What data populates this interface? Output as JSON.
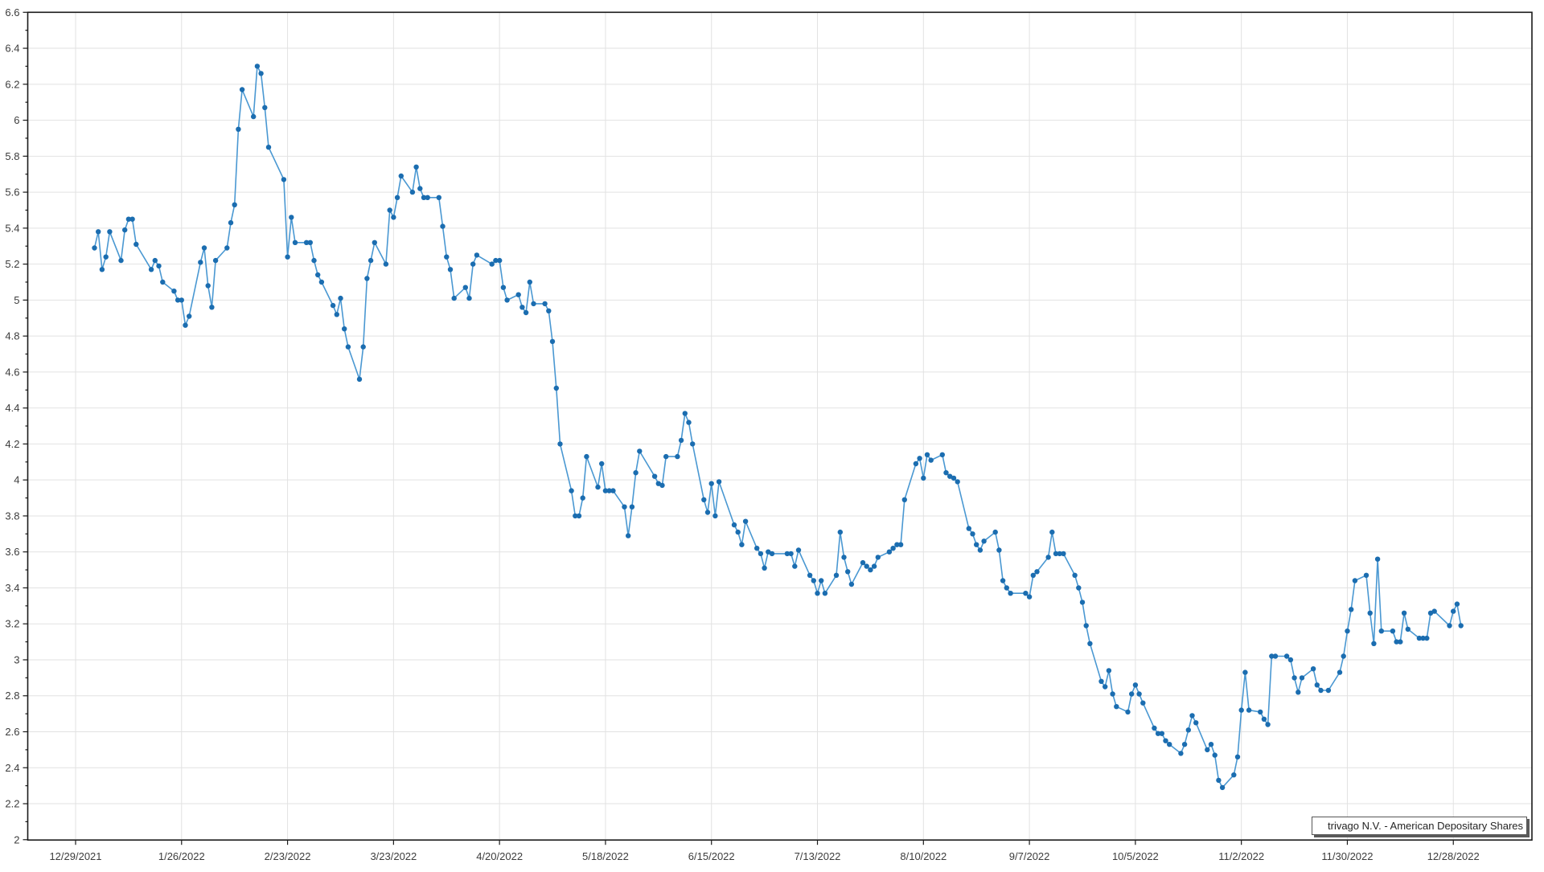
{
  "legend": {
    "label": "trivago N.V. - American Depositary Shares"
  },
  "colors": {
    "line": "#4a98d2",
    "marker": "#1b6db0",
    "grid": "#e2e2e2",
    "axis": "#1a1a1a",
    "tick_label": "#3c3c3c",
    "background": "#ffffff"
  },
  "chart_data": {
    "type": "line",
    "title": "",
    "xlabel": "",
    "ylabel": "",
    "grid": "both",
    "legend_position": "bottom-right",
    "ylim": [
      2.0,
      6.6
    ],
    "y_major_step": 0.2,
    "y_minor_step": 0.1,
    "x_axis_start": "12/29/2021",
    "x_tick_labels": [
      "12/29/2021",
      "1/26/2022",
      "2/23/2022",
      "3/23/2022",
      "4/20/2022",
      "5/18/2022",
      "6/15/2022",
      "7/13/2022",
      "8/10/2022",
      "9/7/2022",
      "10/5/2022",
      "11/2/2022",
      "11/30/2022",
      "12/28/2022"
    ],
    "y_tick_labels": [
      "6.6",
      "6.4",
      "6.2",
      "6",
      "5.8",
      "5.6",
      "5.4",
      "5.2",
      "5",
      "4.8",
      "4.6",
      "4.4",
      "4.2",
      "4",
      "3.8",
      "3.6",
      "3.4",
      "3.2",
      "3",
      "2.8",
      "2.6",
      "2.4",
      "2.2",
      "2"
    ],
    "series": [
      {
        "name": "trivago N.V. - American Depositary Shares",
        "points": [
          [
            "1/3/2022",
            5.29
          ],
          [
            "1/4/2022",
            5.38
          ],
          [
            "1/5/2022",
            5.17
          ],
          [
            "1/6/2022",
            5.24
          ],
          [
            "1/7/2022",
            5.38
          ],
          [
            "1/10/2022",
            5.22
          ],
          [
            "1/11/2022",
            5.39
          ],
          [
            "1/12/2022",
            5.45
          ],
          [
            "1/13/2022",
            5.45
          ],
          [
            "1/14/2022",
            5.31
          ],
          [
            "1/18/2022",
            5.17
          ],
          [
            "1/19/2022",
            5.22
          ],
          [
            "1/20/2022",
            5.19
          ],
          [
            "1/21/2022",
            5.1
          ],
          [
            "1/24/2022",
            5.05
          ],
          [
            "1/25/2022",
            5.0
          ],
          [
            "1/26/2022",
            5.0
          ],
          [
            "1/27/2022",
            4.86
          ],
          [
            "1/28/2022",
            4.91
          ],
          [
            "1/31/2022",
            5.21
          ],
          [
            "2/1/2022",
            5.29
          ],
          [
            "2/2/2022",
            5.08
          ],
          [
            "2/3/2022",
            4.96
          ],
          [
            "2/4/2022",
            5.22
          ],
          [
            "2/7/2022",
            5.29
          ],
          [
            "2/8/2022",
            5.43
          ],
          [
            "2/9/2022",
            5.53
          ],
          [
            "2/10/2022",
            5.95
          ],
          [
            "2/11/2022",
            6.17
          ],
          [
            "2/14/2022",
            6.02
          ],
          [
            "2/15/2022",
            6.3
          ],
          [
            "2/16/2022",
            6.26
          ],
          [
            "2/17/2022",
            6.07
          ],
          [
            "2/18/2022",
            5.85
          ],
          [
            "2/22/2022",
            5.67
          ],
          [
            "2/23/2022",
            5.24
          ],
          [
            "2/24/2022",
            5.46
          ],
          [
            "2/25/2022",
            5.32
          ],
          [
            "2/28/2022",
            5.32
          ],
          [
            "3/1/2022",
            5.32
          ],
          [
            "3/2/2022",
            5.22
          ],
          [
            "3/3/2022",
            5.14
          ],
          [
            "3/4/2022",
            5.1
          ],
          [
            "3/7/2022",
            4.97
          ],
          [
            "3/8/2022",
            4.92
          ],
          [
            "3/9/2022",
            5.01
          ],
          [
            "3/10/2022",
            4.84
          ],
          [
            "3/11/2022",
            4.74
          ],
          [
            "3/14/2022",
            4.56
          ],
          [
            "3/15/2022",
            4.74
          ],
          [
            "3/16/2022",
            5.12
          ],
          [
            "3/17/2022",
            5.22
          ],
          [
            "3/18/2022",
            5.32
          ],
          [
            "3/21/2022",
            5.2
          ],
          [
            "3/22/2022",
            5.5
          ],
          [
            "3/23/2022",
            5.46
          ],
          [
            "3/24/2022",
            5.57
          ],
          [
            "3/25/2022",
            5.69
          ],
          [
            "3/28/2022",
            5.6
          ],
          [
            "3/29/2022",
            5.74
          ],
          [
            "3/30/2022",
            5.62
          ],
          [
            "3/31/2022",
            5.57
          ],
          [
            "4/1/2022",
            5.57
          ],
          [
            "4/4/2022",
            5.57
          ],
          [
            "4/5/2022",
            5.41
          ],
          [
            "4/6/2022",
            5.24
          ],
          [
            "4/7/2022",
            5.17
          ],
          [
            "4/8/2022",
            5.01
          ],
          [
            "4/11/2022",
            5.07
          ],
          [
            "4/12/2022",
            5.01
          ],
          [
            "4/13/2022",
            5.2
          ],
          [
            "4/14/2022",
            5.25
          ],
          [
            "4/18/2022",
            5.2
          ],
          [
            "4/19/2022",
            5.22
          ],
          [
            "4/20/2022",
            5.22
          ],
          [
            "4/21/2022",
            5.07
          ],
          [
            "4/22/2022",
            5.0
          ],
          [
            "4/25/2022",
            5.03
          ],
          [
            "4/26/2022",
            4.96
          ],
          [
            "4/27/2022",
            4.93
          ],
          [
            "4/28/2022",
            5.1
          ],
          [
            "4/29/2022",
            4.98
          ],
          [
            "5/2/2022",
            4.98
          ],
          [
            "5/3/2022",
            4.94
          ],
          [
            "5/4/2022",
            4.77
          ],
          [
            "5/5/2022",
            4.51
          ],
          [
            "5/6/2022",
            4.2
          ],
          [
            "5/9/2022",
            3.94
          ],
          [
            "5/10/2022",
            3.8
          ],
          [
            "5/11/2022",
            3.8
          ],
          [
            "5/12/2022",
            3.9
          ],
          [
            "5/13/2022",
            4.13
          ],
          [
            "5/16/2022",
            3.96
          ],
          [
            "5/17/2022",
            4.09
          ],
          [
            "5/18/2022",
            3.94
          ],
          [
            "5/19/2022",
            3.94
          ],
          [
            "5/20/2022",
            3.94
          ],
          [
            "5/23/2022",
            3.85
          ],
          [
            "5/24/2022",
            3.69
          ],
          [
            "5/25/2022",
            3.85
          ],
          [
            "5/26/2022",
            4.04
          ],
          [
            "5/27/2022",
            4.16
          ],
          [
            "5/31/2022",
            4.02
          ],
          [
            "6/1/2022",
            3.98
          ],
          [
            "6/2/2022",
            3.97
          ],
          [
            "6/3/2022",
            4.13
          ],
          [
            "6/6/2022",
            4.13
          ],
          [
            "6/7/2022",
            4.22
          ],
          [
            "6/8/2022",
            4.37
          ],
          [
            "6/9/2022",
            4.32
          ],
          [
            "6/10/2022",
            4.2
          ],
          [
            "6/13/2022",
            3.89
          ],
          [
            "6/14/2022",
            3.82
          ],
          [
            "6/15/2022",
            3.98
          ],
          [
            "6/16/2022",
            3.8
          ],
          [
            "6/17/2022",
            3.99
          ],
          [
            "6/21/2022",
            3.75
          ],
          [
            "6/22/2022",
            3.71
          ],
          [
            "6/23/2022",
            3.64
          ],
          [
            "6/24/2022",
            3.77
          ],
          [
            "6/27/2022",
            3.62
          ],
          [
            "6/28/2022",
            3.59
          ],
          [
            "6/29/2022",
            3.51
          ],
          [
            "6/30/2022",
            3.6
          ],
          [
            "7/1/2022",
            3.59
          ],
          [
            "7/5/2022",
            3.59
          ],
          [
            "7/6/2022",
            3.59
          ],
          [
            "7/7/2022",
            3.52
          ],
          [
            "7/8/2022",
            3.61
          ],
          [
            "7/11/2022",
            3.47
          ],
          [
            "7/12/2022",
            3.44
          ],
          [
            "7/13/2022",
            3.37
          ],
          [
            "7/14/2022",
            3.44
          ],
          [
            "7/15/2022",
            3.37
          ],
          [
            "7/18/2022",
            3.47
          ],
          [
            "7/19/2022",
            3.71
          ],
          [
            "7/20/2022",
            3.57
          ],
          [
            "7/21/2022",
            3.49
          ],
          [
            "7/22/2022",
            3.42
          ],
          [
            "7/25/2022",
            3.54
          ],
          [
            "7/26/2022",
            3.52
          ],
          [
            "7/27/2022",
            3.5
          ],
          [
            "7/28/2022",
            3.52
          ],
          [
            "7/29/2022",
            3.57
          ],
          [
            "8/1/2022",
            3.6
          ],
          [
            "8/2/2022",
            3.62
          ],
          [
            "8/3/2022",
            3.64
          ],
          [
            "8/4/2022",
            3.64
          ],
          [
            "8/5/2022",
            3.89
          ],
          [
            "8/8/2022",
            4.09
          ],
          [
            "8/9/2022",
            4.12
          ],
          [
            "8/10/2022",
            4.01
          ],
          [
            "8/11/2022",
            4.14
          ],
          [
            "8/12/2022",
            4.11
          ],
          [
            "8/15/2022",
            4.14
          ],
          [
            "8/16/2022",
            4.04
          ],
          [
            "8/17/2022",
            4.02
          ],
          [
            "8/18/2022",
            4.01
          ],
          [
            "8/19/2022",
            3.99
          ],
          [
            "8/22/2022",
            3.73
          ],
          [
            "8/23/2022",
            3.7
          ],
          [
            "8/24/2022",
            3.64
          ],
          [
            "8/25/2022",
            3.61
          ],
          [
            "8/26/2022",
            3.66
          ],
          [
            "8/29/2022",
            3.71
          ],
          [
            "8/30/2022",
            3.61
          ],
          [
            "8/31/2022",
            3.44
          ],
          [
            "9/1/2022",
            3.4
          ],
          [
            "9/2/2022",
            3.37
          ],
          [
            "9/6/2022",
            3.37
          ],
          [
            "9/7/2022",
            3.35
          ],
          [
            "9/8/2022",
            3.47
          ],
          [
            "9/9/2022",
            3.49
          ],
          [
            "9/12/2022",
            3.57
          ],
          [
            "9/13/2022",
            3.71
          ],
          [
            "9/14/2022",
            3.59
          ],
          [
            "9/15/2022",
            3.59
          ],
          [
            "9/16/2022",
            3.59
          ],
          [
            "9/19/2022",
            3.47
          ],
          [
            "9/20/2022",
            3.4
          ],
          [
            "9/21/2022",
            3.32
          ],
          [
            "9/22/2022",
            3.19
          ],
          [
            "9/23/2022",
            3.09
          ],
          [
            "9/26/2022",
            2.88
          ],
          [
            "9/27/2022",
            2.85
          ],
          [
            "9/28/2022",
            2.94
          ],
          [
            "9/29/2022",
            2.81
          ],
          [
            "9/30/2022",
            2.74
          ],
          [
            "10/3/2022",
            2.71
          ],
          [
            "10/4/2022",
            2.81
          ],
          [
            "10/5/2022",
            2.86
          ],
          [
            "10/6/2022",
            2.81
          ],
          [
            "10/7/2022",
            2.76
          ],
          [
            "10/10/2022",
            2.62
          ],
          [
            "10/11/2022",
            2.59
          ],
          [
            "10/12/2022",
            2.59
          ],
          [
            "10/13/2022",
            2.55
          ],
          [
            "10/14/2022",
            2.53
          ],
          [
            "10/17/2022",
            2.48
          ],
          [
            "10/18/2022",
            2.53
          ],
          [
            "10/19/2022",
            2.61
          ],
          [
            "10/20/2022",
            2.69
          ],
          [
            "10/21/2022",
            2.65
          ],
          [
            "10/24/2022",
            2.5
          ],
          [
            "10/25/2022",
            2.53
          ],
          [
            "10/26/2022",
            2.47
          ],
          [
            "10/27/2022",
            2.33
          ],
          [
            "10/28/2022",
            2.29
          ],
          [
            "10/31/2022",
            2.36
          ],
          [
            "11/1/2022",
            2.46
          ],
          [
            "11/2/2022",
            2.72
          ],
          [
            "11/3/2022",
            2.93
          ],
          [
            "11/4/2022",
            2.72
          ],
          [
            "11/7/2022",
            2.71
          ],
          [
            "11/8/2022",
            2.67
          ],
          [
            "11/9/2022",
            2.64
          ],
          [
            "11/10/2022",
            3.02
          ],
          [
            "11/11/2022",
            3.02
          ],
          [
            "11/14/2022",
            3.02
          ],
          [
            "11/15/2022",
            3.0
          ],
          [
            "11/16/2022",
            2.9
          ],
          [
            "11/17/2022",
            2.82
          ],
          [
            "11/18/2022",
            2.9
          ],
          [
            "11/21/2022",
            2.95
          ],
          [
            "11/22/2022",
            2.86
          ],
          [
            "11/23/2022",
            2.83
          ],
          [
            "11/25/2022",
            2.83
          ],
          [
            "11/28/2022",
            2.93
          ],
          [
            "11/29/2022",
            3.02
          ],
          [
            "11/30/2022",
            3.16
          ],
          [
            "12/1/2022",
            3.28
          ],
          [
            "12/2/2022",
            3.44
          ],
          [
            "12/5/2022",
            3.47
          ],
          [
            "12/6/2022",
            3.26
          ],
          [
            "12/7/2022",
            3.09
          ],
          [
            "12/8/2022",
            3.56
          ],
          [
            "12/9/2022",
            3.16
          ],
          [
            "12/12/2022",
            3.16
          ],
          [
            "12/13/2022",
            3.1
          ],
          [
            "12/14/2022",
            3.1
          ],
          [
            "12/15/2022",
            3.26
          ],
          [
            "12/16/2022",
            3.17
          ],
          [
            "12/19/2022",
            3.12
          ],
          [
            "12/20/2022",
            3.12
          ],
          [
            "12/21/2022",
            3.12
          ],
          [
            "12/22/2022",
            3.26
          ],
          [
            "12/23/2022",
            3.27
          ],
          [
            "12/27/2022",
            3.19
          ],
          [
            "12/28/2022",
            3.27
          ],
          [
            "12/29/2022",
            3.31
          ],
          [
            "12/30/2022",
            3.19
          ]
        ]
      }
    ]
  }
}
